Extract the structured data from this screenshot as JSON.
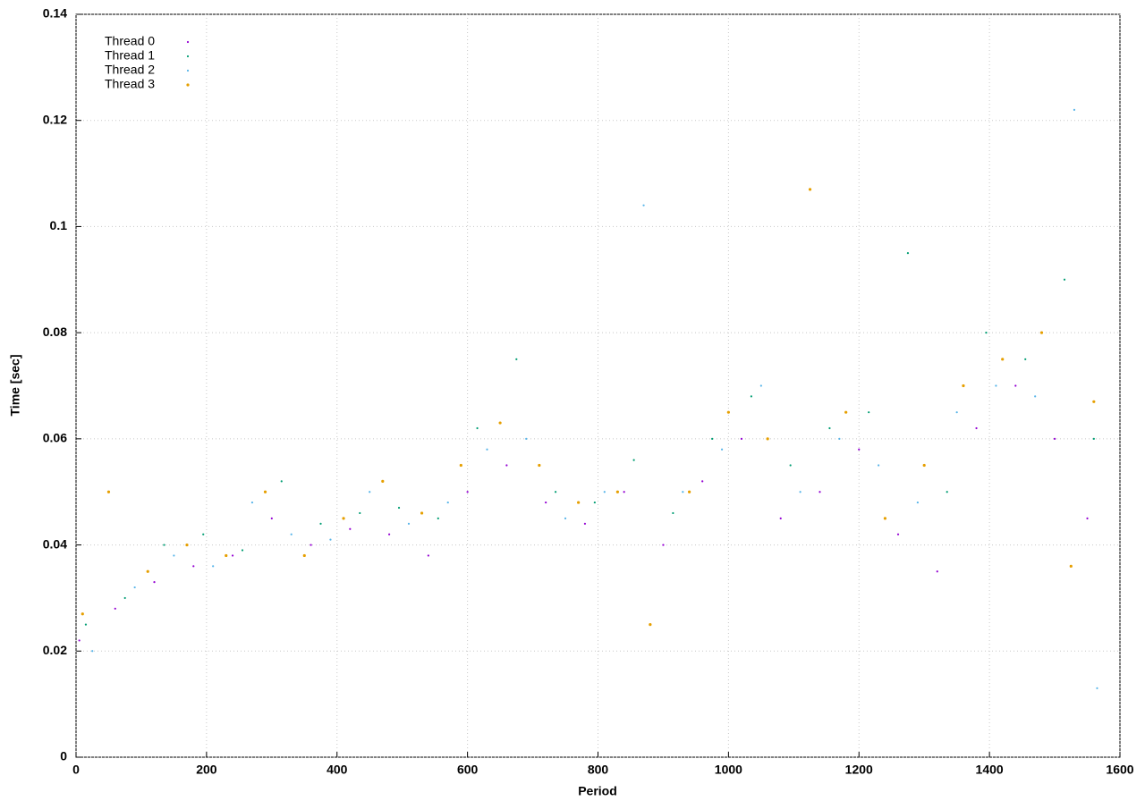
{
  "chart_data": {
    "type": "scatter",
    "x_label": "Period",
    "y_label": "Time [sec]",
    "xlim": [
      0,
      1600
    ],
    "ylim": [
      0,
      0.14
    ],
    "xticks": [
      0,
      200,
      400,
      600,
      800,
      1000,
      1200,
      1400,
      1600
    ],
    "yticks": [
      0,
      0.02,
      0.04,
      0.06,
      0.08,
      0.1,
      0.12,
      0.14
    ],
    "grid": true,
    "legend": "top-left",
    "series": [
      {
        "name": "Thread 0",
        "color": "#9400d3",
        "x": [
          5,
          60,
          120,
          180,
          240,
          300,
          360,
          420,
          480,
          540,
          600,
          660,
          720,
          780,
          840,
          900,
          960,
          1020,
          1080,
          1140,
          1200,
          1260,
          1320,
          1380,
          1440,
          1500,
          1550
        ],
        "values": [
          0.022,
          0.028,
          0.033,
          0.036,
          0.038,
          0.045,
          0.04,
          0.043,
          0.042,
          0.038,
          0.05,
          0.055,
          0.048,
          0.044,
          0.05,
          0.04,
          0.052,
          0.06,
          0.045,
          0.05,
          0.058,
          0.042,
          0.035,
          0.062,
          0.07,
          0.06,
          0.045
        ]
      },
      {
        "name": "Thread 1",
        "color": "#009e73",
        "x": [
          15,
          75,
          135,
          195,
          255,
          315,
          375,
          435,
          495,
          555,
          615,
          675,
          735,
          795,
          855,
          915,
          975,
          1035,
          1095,
          1155,
          1215,
          1275,
          1335,
          1395,
          1455,
          1515,
          1560
        ],
        "values": [
          0.025,
          0.03,
          0.04,
          0.042,
          0.039,
          0.052,
          0.044,
          0.046,
          0.047,
          0.045,
          0.062,
          0.075,
          0.05,
          0.048,
          0.056,
          0.046,
          0.06,
          0.068,
          0.055,
          0.062,
          0.065,
          0.095,
          0.05,
          0.08,
          0.075,
          0.09,
          0.06
        ]
      },
      {
        "name": "Thread 2",
        "color": "#56b4e9",
        "x": [
          25,
          90,
          150,
          210,
          270,
          330,
          390,
          450,
          510,
          570,
          630,
          690,
          750,
          810,
          870,
          930,
          990,
          1050,
          1110,
          1170,
          1230,
          1290,
          1350,
          1410,
          1470,
          1530,
          1565
        ],
        "values": [
          0.02,
          0.032,
          0.038,
          0.036,
          0.048,
          0.042,
          0.041,
          0.05,
          0.044,
          0.048,
          0.058,
          0.06,
          0.045,
          0.05,
          0.104,
          0.05,
          0.058,
          0.07,
          0.05,
          0.06,
          0.055,
          0.048,
          0.065,
          0.07,
          0.068,
          0.122,
          0.013
        ]
      },
      {
        "name": "Thread 3",
        "color": "#e69f00",
        "x": [
          10,
          50,
          110,
          170,
          230,
          290,
          350,
          410,
          470,
          530,
          590,
          650,
          710,
          770,
          830,
          880,
          940,
          1000,
          1060,
          1125,
          1180,
          1240,
          1300,
          1360,
          1420,
          1480,
          1525,
          1560
        ],
        "values": [
          0.027,
          0.05,
          0.035,
          0.04,
          0.038,
          0.05,
          0.038,
          0.045,
          0.052,
          0.046,
          0.055,
          0.063,
          0.055,
          0.048,
          0.05,
          0.025,
          0.05,
          0.065,
          0.06,
          0.107,
          0.065,
          0.045,
          0.055,
          0.07,
          0.075,
          0.08,
          0.036,
          0.067
        ]
      }
    ]
  }
}
